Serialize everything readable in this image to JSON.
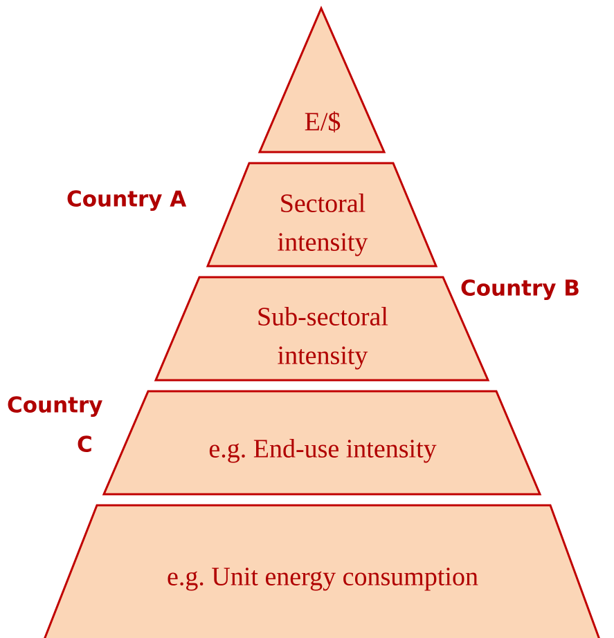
{
  "levels": [
    {
      "lines": [
        "E/$"
      ]
    },
    {
      "lines": [
        "Sectoral",
        "intensity"
      ]
    },
    {
      "lines": [
        "Sub-sectoral",
        "intensity"
      ]
    },
    {
      "lines": [
        "e.g. End-use intensity"
      ]
    },
    {
      "lines": [
        "e.g. Unit energy consumption"
      ]
    }
  ],
  "countries": [
    {
      "lines": [
        "Country A"
      ]
    },
    {
      "lines": [
        "Country B"
      ]
    },
    {
      "lines": [
        "Country",
        "C"
      ]
    }
  ]
}
